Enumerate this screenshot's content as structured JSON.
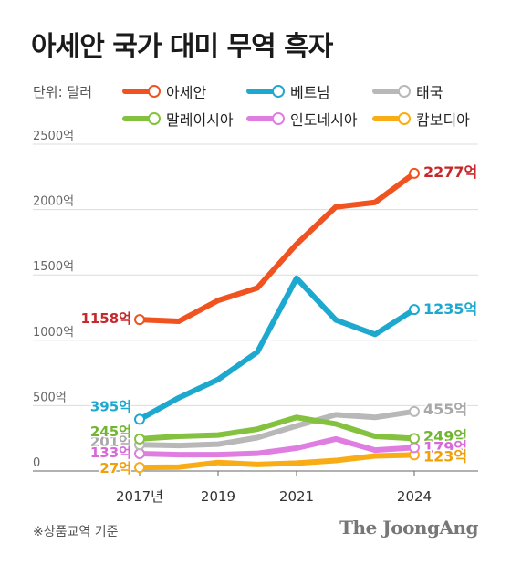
{
  "title": "아세안 국가 대미 무역 흑자",
  "unit_label": "단위: 달러",
  "footnote": "※상품교역 기준",
  "brand": "The JoongAng",
  "chart_data": {
    "type": "line",
    "title": "아세안 국가 대미 무역 흑자",
    "x": [
      2017,
      2018,
      2019,
      2020,
      2021,
      2022,
      2023,
      2024
    ],
    "x_tick_labels": [
      "2017년",
      "2019",
      "2021",
      "2024"
    ],
    "x_tick_values": [
      2017,
      2019,
      2021,
      2024
    ],
    "y_tick_labels": [
      "2500억",
      "2000억",
      "1500억",
      "1000억",
      "500억",
      "0"
    ],
    "y_tick_values": [
      2500,
      2000,
      1500,
      1000,
      500,
      0
    ],
    "ylim": [
      0,
      2500
    ],
    "grid": "horizontal",
    "legend_position": "top",
    "series": [
      {
        "name": "아세안",
        "color": "#f0531f",
        "label_color": "#c7282b",
        "values": [
          1158,
          1145,
          1305,
          1400,
          1735,
          2020,
          2055,
          2277
        ],
        "start_label": "1158억",
        "end_label": "2277억"
      },
      {
        "name": "베트남",
        "color": "#1da9cf",
        "label_color": "#1da9cf",
        "values": [
          395,
          560,
          700,
          910,
          1475,
          1155,
          1045,
          1235
        ],
        "start_label": "395억",
        "end_label": "1235억"
      },
      {
        "name": "태국",
        "color": "#b8b8b8",
        "label_color": "#a8a8a8",
        "values": [
          201,
          195,
          205,
          255,
          345,
          430,
          410,
          455
        ],
        "start_label": "201억",
        "end_label": "455억"
      },
      {
        "name": "말레이시아",
        "color": "#83c13f",
        "label_color": "#72b532",
        "values": [
          245,
          265,
          275,
          320,
          410,
          360,
          265,
          249
        ],
        "start_label": "245억",
        "end_label": "249억"
      },
      {
        "name": "인도네시아",
        "color": "#df7ee0",
        "label_color": "#d86ad8",
        "values": [
          133,
          125,
          125,
          135,
          175,
          245,
          160,
          179
        ],
        "start_label": "133억",
        "end_label": "179억"
      },
      {
        "name": "캄보디아",
        "color": "#f8ad16",
        "label_color": "#f0a00a",
        "values": [
          27,
          30,
          65,
          50,
          60,
          80,
          115,
          123
        ],
        "start_label": "27억",
        "end_label": "123억"
      }
    ]
  }
}
